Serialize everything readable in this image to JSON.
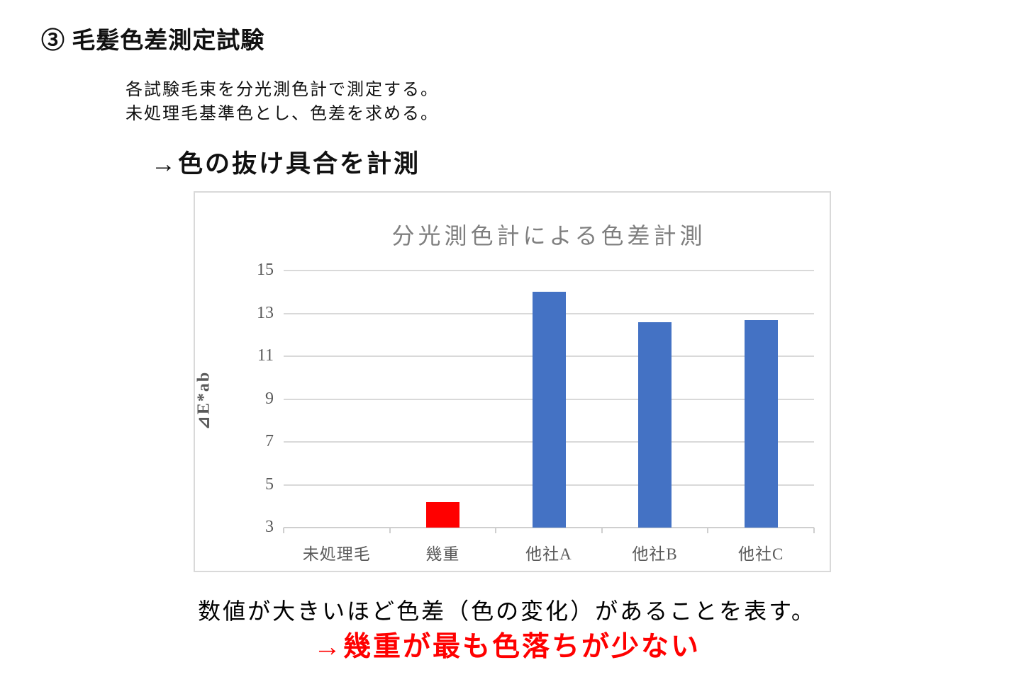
{
  "page": {
    "heading": "③ 毛髪色差測定試験",
    "description_line1": "各試験毛束を分光測色計で測定する。",
    "description_line2": "未処理毛基準色とし、色差を求める。",
    "measure_note": "→色の抜け具合を計測",
    "caption": "数値が大きいほど色差（色の変化）があることを表す。",
    "conclusion": "→幾重が最も色落ちが少ない"
  },
  "chart_data": {
    "type": "bar",
    "title": "分光測色計による色差計測",
    "categories": [
      "未処理毛",
      "幾重",
      "他社A",
      "他社B",
      "他社C"
    ],
    "values": [
      0,
      4.2,
      14,
      12.6,
      12.7
    ],
    "bar_colors": [
      "#4472c4",
      "#ff0000",
      "#4472c4",
      "#4472c4",
      "#4472c4"
    ],
    "highlighted_category": "幾重",
    "xlabel": "",
    "ylabel": "⊿E*ab",
    "ylim": [
      3,
      15
    ],
    "yticks": [
      3,
      5,
      7,
      9,
      11,
      13,
      15
    ],
    "grid": true,
    "legend": false
  },
  "colors": {
    "bar_default": "#4472c4",
    "bar_highlight": "#ff0000",
    "gridline": "#d9d9d9",
    "axis_text": "#595959",
    "chart_title": "#7f7f7f",
    "conclusion_text": "#ff0000"
  }
}
